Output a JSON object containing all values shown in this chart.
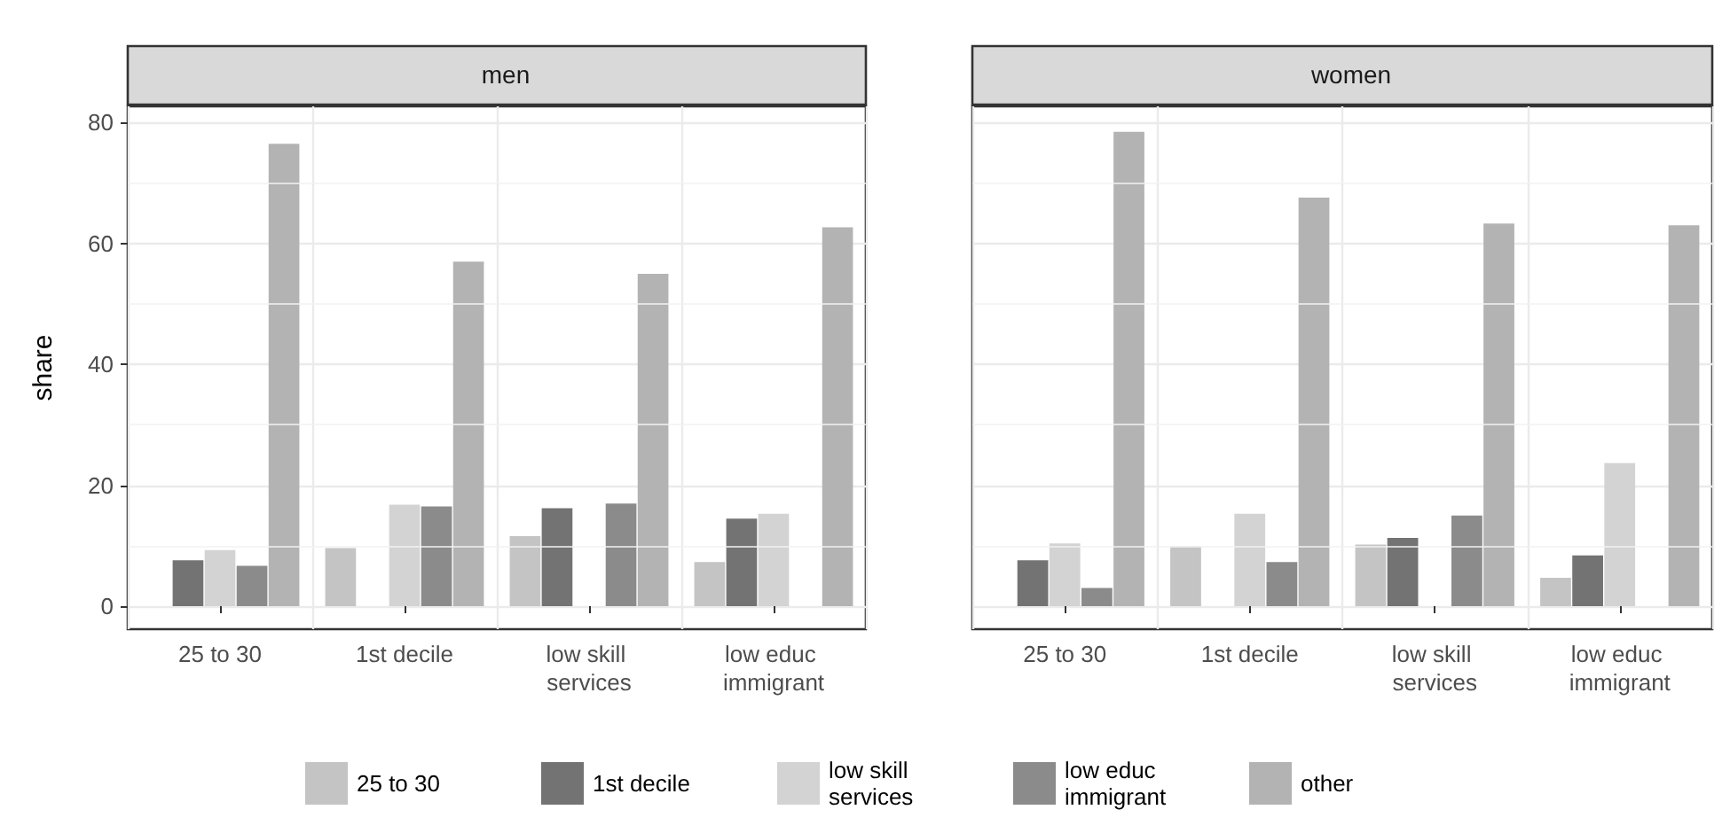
{
  "chart_data": [
    {
      "type": "bar",
      "title": "men",
      "ylabel": "share",
      "categories": [
        "25 to 30",
        "1st decile",
        "low skill services",
        "low educ immigrant"
      ],
      "series": [
        {
          "name": "25 to 30",
          "color": "#c4c4c4",
          "values": [
            null,
            9.6,
            11.6,
            7.3
          ]
        },
        {
          "name": "1st decile",
          "color": "#737373",
          "values": [
            7.6,
            null,
            16.2,
            14.5
          ]
        },
        {
          "name": "low skill services",
          "color": "#d3d3d3",
          "values": [
            9.3,
            16.8,
            null,
            15.3
          ]
        },
        {
          "name": "low educ immigrant",
          "color": "#8b8b8b",
          "values": [
            6.7,
            16.5,
            17.0,
            null
          ]
        },
        {
          "name": "other",
          "color": "#b3b3b3",
          "values": [
            76.5,
            57.0,
            55.0,
            62.7
          ]
        }
      ],
      "ylim": [
        -3.8,
        82.7
      ],
      "yticks": [
        0,
        20,
        40,
        60,
        80
      ],
      "grid": true,
      "legend": "bottom"
    },
    {
      "type": "bar",
      "title": "women",
      "categories": [
        "25 to 30",
        "1st decile",
        "low skill services",
        "low educ immigrant"
      ],
      "series": [
        {
          "name": "25 to 30",
          "color": "#c4c4c4",
          "values": [
            null,
            9.9,
            10.2,
            4.7
          ]
        },
        {
          "name": "1st decile",
          "color": "#737373",
          "values": [
            7.6,
            null,
            11.3,
            8.4
          ]
        },
        {
          "name": "low skill services",
          "color": "#d3d3d3",
          "values": [
            10.4,
            15.3,
            null,
            23.7
          ]
        },
        {
          "name": "low educ immigrant",
          "color": "#8b8b8b",
          "values": [
            3.0,
            7.3,
            15.0,
            null
          ]
        },
        {
          "name": "other",
          "color": "#b3b3b3",
          "values": [
            78.5,
            67.6,
            63.3,
            63.0
          ]
        }
      ],
      "ylim": [
        -3.8,
        82.7
      ],
      "yticks": [
        0,
        20,
        40,
        60,
        80
      ],
      "grid": true,
      "tick_labels": "x"
    }
  ]
}
